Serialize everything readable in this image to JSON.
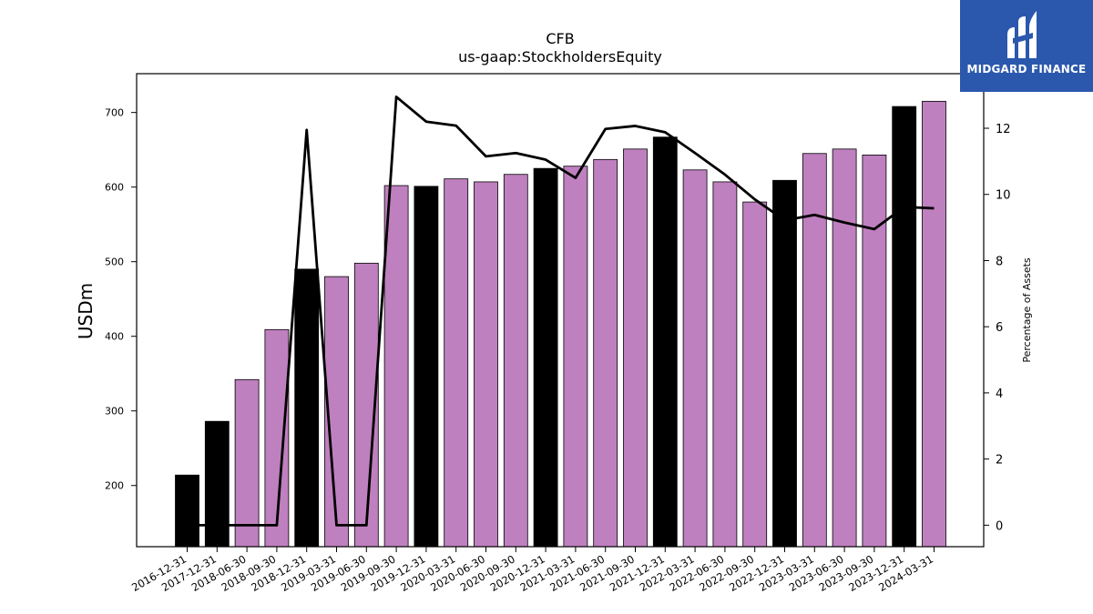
{
  "chart_data": {
    "type": "bar",
    "title": "CFB",
    "subtitle": "us-gaap:StockholdersEquity",
    "ylabel": "USDm",
    "y2label": "Percentage of Assets",
    "ylim": [
      118,
      752
    ],
    "y2lim": [
      -0.65,
      13.65
    ],
    "yticks": [
      200,
      300,
      400,
      500,
      600,
      700
    ],
    "y2ticks": [
      0,
      2,
      4,
      6,
      8,
      10,
      12
    ],
    "grid": false,
    "categories": [
      "2016-12-31",
      "2017-12-31",
      "2018-06-30",
      "2018-09-30",
      "2018-12-31",
      "2019-03-31",
      "2019-06-30",
      "2019-09-30",
      "2019-12-31",
      "2020-03-31",
      "2020-06-30",
      "2020-09-30",
      "2020-12-31",
      "2021-03-31",
      "2021-06-30",
      "2021-09-30",
      "2021-12-31",
      "2022-03-31",
      "2022-06-30",
      "2022-09-30",
      "2022-12-31",
      "2023-03-31",
      "2023-06-30",
      "2023-09-30",
      "2023-12-31",
      "2024-03-31"
    ],
    "series": [
      {
        "kind": "bar",
        "axis": "left",
        "values": [
          214,
          286,
          342,
          409,
          490,
          480,
          498,
          602,
          601,
          611,
          607,
          617,
          625,
          628,
          637,
          651,
          667,
          623,
          607,
          580,
          609,
          645,
          651,
          643,
          708,
          715
        ],
        "colors": [
          "#000000",
          "#000000",
          "#bf80bf",
          "#bf80bf",
          "#000000",
          "#bf80bf",
          "#bf80bf",
          "#bf80bf",
          "#000000",
          "#bf80bf",
          "#bf80bf",
          "#bf80bf",
          "#000000",
          "#bf80bf",
          "#bf80bf",
          "#bf80bf",
          "#000000",
          "#bf80bf",
          "#bf80bf",
          "#bf80bf",
          "#000000",
          "#bf80bf",
          "#bf80bf",
          "#bf80bf",
          "#000000",
          "#bf80bf"
        ]
      },
      {
        "kind": "line",
        "axis": "right",
        "color": "#000000",
        "values": [
          0,
          0,
          0,
          0,
          11.95,
          0,
          0,
          12.95,
          12.2,
          12.08,
          11.15,
          11.25,
          11.05,
          10.5,
          11.98,
          12.07,
          11.88,
          11.25,
          10.6,
          9.85,
          9.22,
          9.38,
          9.15,
          8.95,
          9.62,
          9.58
        ]
      }
    ]
  },
  "logo": {
    "text": "MIDGARD FINANCE",
    "background": "#2b58ad"
  }
}
